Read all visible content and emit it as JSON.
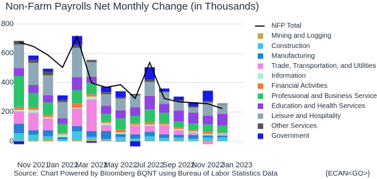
{
  "chart_data": {
    "type": "bar",
    "stacked": true,
    "title": "Non-Farm Payrolls Net Monthly Change (in Thousands)",
    "source": "Source: Chart Powered by Bloomberg BQNT using Bureau of Labor Statistics Data",
    "tag": "{ECAN<GO>}",
    "categories": [
      null,
      "Nov 2021",
      null,
      "Jan 2022",
      null,
      "Mar 2022",
      null,
      "May 2022",
      null,
      "Jul 2022",
      null,
      "Sep 2022",
      null,
      "Nov 2022",
      null,
      "Jan 2023"
    ],
    "ylim": [
      -70,
      820
    ],
    "yticks": [
      0,
      200,
      400,
      600,
      800
    ],
    "grid": true,
    "total": {
      "name": "NFP Total",
      "color": "#000000",
      "values": [
        677,
        647,
        588,
        504,
        714,
        398,
        368,
        386,
        293,
        537,
        292,
        269,
        263,
        256,
        223,
        null
      ]
    },
    "series": [
      {
        "name": "Mining and Logging",
        "color": "#c9a54e",
        "values": [
          5,
          5,
          10,
          3,
          8,
          10,
          6,
          4,
          3,
          5,
          3,
          5,
          3,
          5,
          3,
          null
        ]
      },
      {
        "name": "Construction",
        "color": "#3ec6e6",
        "values": [
          50,
          40,
          25,
          10,
          60,
          20,
          10,
          25,
          15,
          30,
          20,
          20,
          15,
          20,
          25,
          null
        ]
      },
      {
        "name": "Manufacturing",
        "color": "#2a7fd4",
        "values": [
          65,
          30,
          40,
          15,
          35,
          40,
          55,
          20,
          30,
          30,
          25,
          20,
          25,
          15,
          10,
          null
        ]
      },
      {
        "name": "Trade, Transportation, and Utilities",
        "color": "#f285e0",
        "values": [
          85,
          120,
          80,
          0,
          120,
          215,
          40,
          -5,
          60,
          40,
          60,
          30,
          15,
          -20,
          10,
          null
        ]
      },
      {
        "name": "Information",
        "color": "#a8ecd0",
        "values": [
          10,
          20,
          10,
          20,
          5,
          20,
          15,
          12,
          5,
          10,
          5,
          10,
          10,
          10,
          5,
          null
        ]
      },
      {
        "name": "Financial Activities",
        "color": "#f47a3a",
        "values": [
          20,
          15,
          15,
          10,
          30,
          15,
          10,
          20,
          10,
          15,
          12,
          10,
          8,
          15,
          5,
          null
        ]
      },
      {
        "name": "Professional and Business Services",
        "color": "#2cc36b",
        "values": [
          210,
          100,
          85,
          60,
          90,
          80,
          50,
          75,
          50,
          90,
          70,
          40,
          45,
          50,
          50,
          null
        ]
      },
      {
        "name": "Education and Health Services",
        "color": "#8e44e0",
        "values": [
          55,
          55,
          50,
          40,
          90,
          40,
          55,
          55,
          60,
          90,
          60,
          75,
          75,
          60,
          80,
          null
        ]
      },
      {
        "name": "Leisure and Hospitality",
        "color": "#8fa8b8",
        "values": [
          160,
          150,
          135,
          110,
          200,
          100,
          80,
          80,
          80,
          95,
          80,
          60,
          35,
          90,
          65,
          null
        ]
      },
      {
        "name": "Other Services",
        "color": "#555555",
        "values": [
          25,
          20,
          25,
          15,
          20,
          15,
          15,
          10,
          10,
          15,
          5,
          10,
          10,
          10,
          5,
          null
        ]
      },
      {
        "name": "Government",
        "color": "#1a1ae6",
        "values": [
          -20,
          30,
          20,
          30,
          60,
          -10,
          35,
          40,
          -35,
          85,
          20,
          25,
          25,
          70,
          0,
          null
        ]
      }
    ]
  }
}
